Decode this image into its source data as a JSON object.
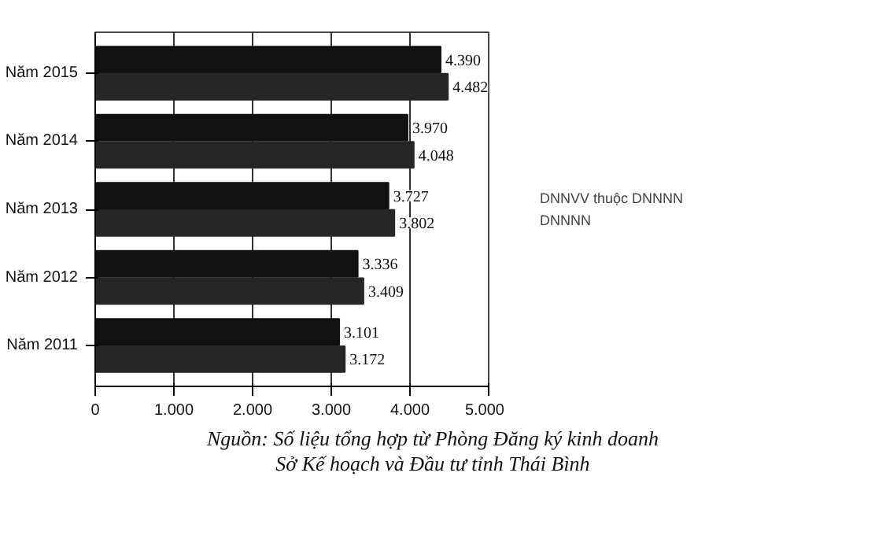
{
  "chart_data": {
    "type": "bar",
    "orientation": "horizontal",
    "categories": [
      "Năm 2015",
      "Năm 2014",
      "Năm 2013",
      "Năm 2012",
      "Năm 2011"
    ],
    "series": [
      {
        "name": "DNNVV thuộc DNNNN",
        "color": "#111111",
        "values": [
          4390,
          3970,
          3727,
          3336,
          3101
        ],
        "value_labels": [
          "4.390",
          "3.970",
          "3.727",
          "3.336",
          "3.101"
        ]
      },
      {
        "name": "DNNNN",
        "color": "#262626",
        "values": [
          4482,
          4048,
          3802,
          3409,
          3172
        ],
        "value_labels": [
          "4.482",
          "4.048",
          "3.802",
          "3.409",
          "3.172"
        ]
      }
    ],
    "xlim": [
      0,
      5000
    ],
    "xticks": [
      0,
      {
        "value": 1000,
        "label": "1.000"
      },
      {
        "value": 2000,
        "label": "2.000"
      },
      {
        "value": 3000,
        "label": "3.000"
      },
      {
        "value": 4000,
        "label": "4.000"
      },
      {
        "value": 5000,
        "label": "5.000"
      }
    ],
    "grid": "x",
    "legend": "right",
    "annotations": [
      "Nguồn: Số liệu tổng hợp từ Phòng Đăng ký kinh doanh",
      "Sở Kế hoạch và Đầu tư tỉnh Thái Bình"
    ]
  }
}
